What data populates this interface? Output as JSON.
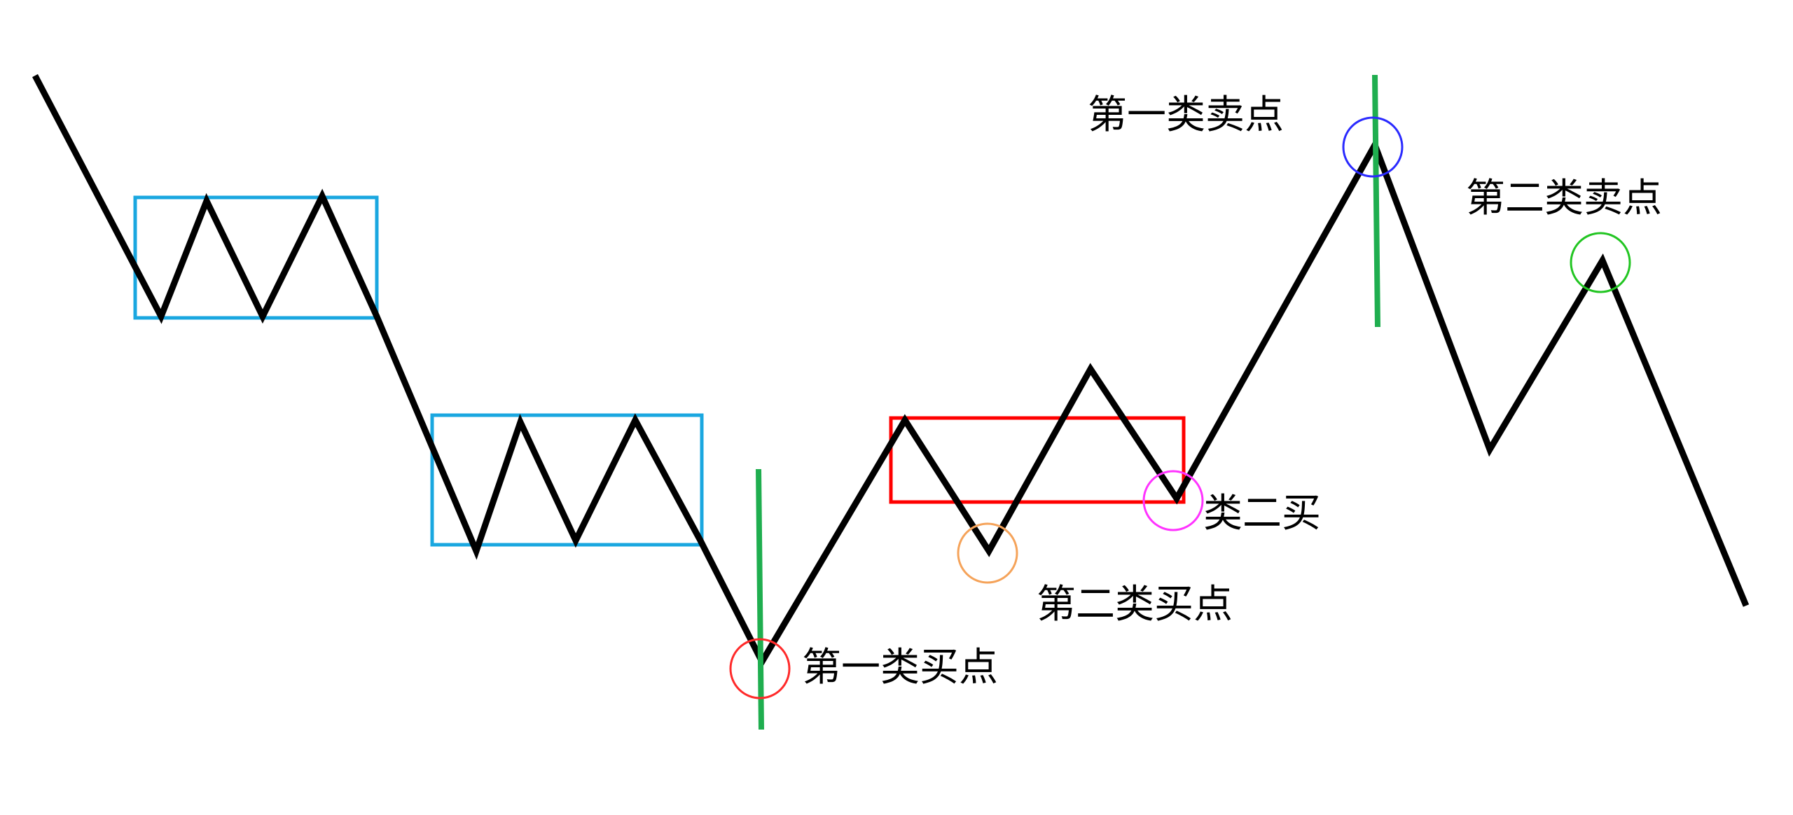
{
  "colors": {
    "background": "#ffffff",
    "price_line": "#000000",
    "central_zone_down": "#1aa7e0",
    "central_zone_up": "#ff0000",
    "green_marker": "#1fae4f",
    "circle_buy1": "#ff2a2a",
    "circle_buy2": "#f5a35a",
    "circle_quasi_buy2": "#ff33ff",
    "circle_sell1": "#2a2aff",
    "circle_sell2": "#22c522"
  },
  "labels": {
    "sell1": "第一类卖点",
    "sell2": "第二类卖点",
    "quasi_buy2": "类二买",
    "buy2": "第二类买点",
    "buy1": "第一类买点"
  }
}
